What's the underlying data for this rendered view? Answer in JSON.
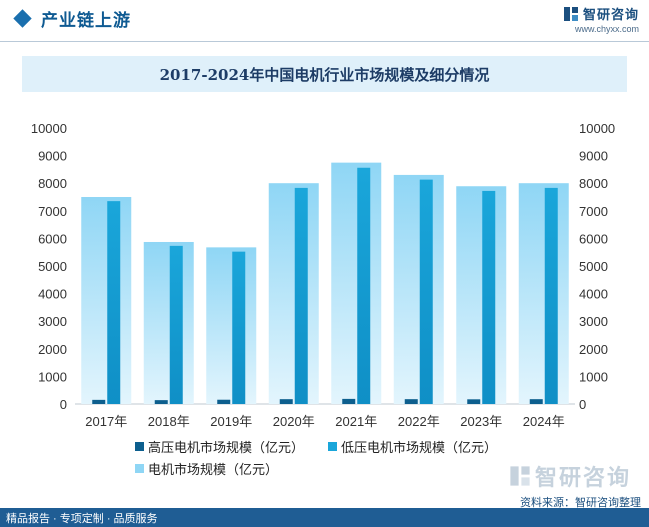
{
  "header": {
    "section_title": "产业链上游",
    "brand_name": "智研咨询",
    "brand_url": "www.chyxx.com"
  },
  "chart_data": {
    "type": "bar",
    "title": "2017-2024年中国电机行业市场规模及细分情况",
    "categories": [
      "2017年",
      "2018年",
      "2019年",
      "2020年",
      "2021年",
      "2022年",
      "2023年",
      "2024年"
    ],
    "series": [
      {
        "name": "高压电机市场规模（亿元）",
        "values": [
          150,
          140,
          155,
          175,
          185,
          175,
          170,
          175
        ],
        "color": "#0d5f8e"
      },
      {
        "name": "低压电机市场规模（亿元）",
        "values": [
          7350,
          5730,
          5520,
          7830,
          8560,
          8130,
          7720,
          7830
        ],
        "color": "#1aa6da"
      },
      {
        "name": "电机市场规模（亿元）",
        "values": [
          7500,
          5870,
          5675,
          8000,
          8745,
          8300,
          7890,
          8000
        ],
        "color": "#8fd6f5"
      }
    ],
    "ylim": [
      0,
      10000
    ],
    "yticks": [
      0,
      1000,
      2000,
      3000,
      4000,
      5000,
      6000,
      7000,
      8000,
      9000,
      10000
    ],
    "secondary_axis": true,
    "grid": false,
    "legend_position": "bottom"
  },
  "footer": {
    "left_text": "精品报告 · 专项定制 · 品质服务",
    "source": "资料来源：智研咨询整理",
    "bottom_brand": "智研咨询"
  }
}
